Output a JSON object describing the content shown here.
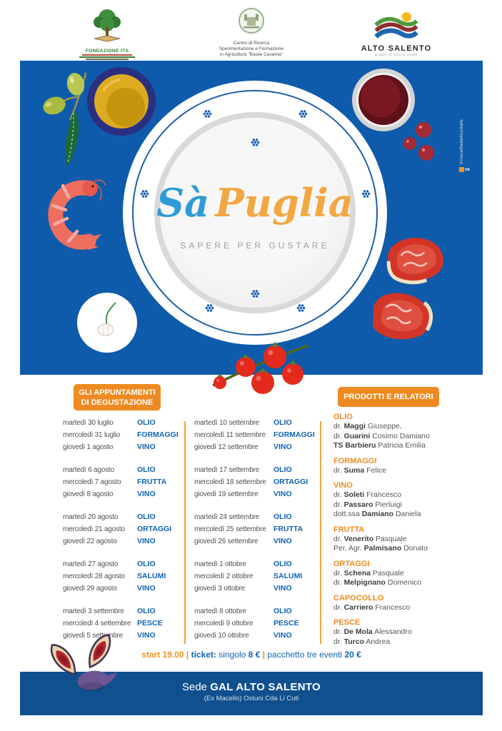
{
  "colors": {
    "background_blue": "#0e5bab",
    "footer_blue": "#11508f",
    "accent_orange": "#ee8a21",
    "category_blue": "#0e64b4",
    "script_blue": "#2d9bd5",
    "script_orange": "#f2a742"
  },
  "header": {
    "logo_fondazione": {
      "title": "FONDAZIONE ITS"
    },
    "logo_centro": {
      "lines": [
        "Centro di Ricerca",
        "Sperimentazione e Formazione",
        "in Agricoltura \"Basile Caramia\""
      ]
    },
    "logo_alto": {
      "title": "ALTO SALENTO",
      "subtitle": "gruppo di azione locale"
    }
  },
  "plate": {
    "title_sa": "Sà",
    "title_puglia": "Puglia",
    "subtitle": "SAPERE PER GUSTARE"
  },
  "side_credit": {
    "text": "ilriscattodellucitale",
    "mark": "rtk"
  },
  "schedule": {
    "header_line1": "GLI APPUNTAMENTI",
    "header_line2": "DI DEGUSTAZIONE",
    "columns": [
      {
        "groups": [
          [
            {
              "day": "martedì 30 luglio",
              "category": "OLIO"
            },
            {
              "day": "mercoledì 31 luglio",
              "category": "FORMAGGI"
            },
            {
              "day": "giovedì 1 agosto",
              "category": "VINO"
            }
          ],
          [
            {
              "day": "martedì 6 agosto",
              "category": "OLIO"
            },
            {
              "day": "mercoledì 7 agosto",
              "category": "FRUTTA"
            },
            {
              "day": "giovedì 8 agosto",
              "category": "VINO"
            }
          ],
          [
            {
              "day": "martedì 20 agosto",
              "category": "OLIO"
            },
            {
              "day": "mercoledì 21 agosto",
              "category": "ORTAGGI"
            },
            {
              "day": "giovedì 22 agosto",
              "category": "VINO"
            }
          ],
          [
            {
              "day": "martedì 27 agosto",
              "category": "OLIO"
            },
            {
              "day": "mercoledì 28 agosto",
              "category": "SALUMI"
            },
            {
              "day": "giovedì 29 agosto",
              "category": "VINO"
            }
          ],
          [
            {
              "day": "martedì 3 settembre",
              "category": "OLIO"
            },
            {
              "day": "mercoledì 4 settembre",
              "category": "PESCE"
            },
            {
              "day": "giovedì 5 settembre",
              "category": "VINO"
            }
          ]
        ]
      },
      {
        "groups": [
          [
            {
              "day": "martedì 10 settembre",
              "category": "OLIO"
            },
            {
              "day": "mercoledì 11 settembre",
              "category": "FORMAGGI"
            },
            {
              "day": "giovedì 12 settembre",
              "category": "VINO"
            }
          ],
          [
            {
              "day": "martedì 17 settembre",
              "category": "OLIO"
            },
            {
              "day": "mercoledì 18 settembre",
              "category": "ORTAGGI"
            },
            {
              "day": "giovedì 19 settembre",
              "category": "VINO"
            }
          ],
          [
            {
              "day": "martedì 24 settembre",
              "category": "OLIO"
            },
            {
              "day": "mercoledì 25 settembre",
              "category": "FRUTTA"
            },
            {
              "day": "giovedì 26 settembre",
              "category": "VINO"
            }
          ],
          [
            {
              "day": "martedì 1 ottobre",
              "category": "OLIO"
            },
            {
              "day": "mercoledì 2 ottobre",
              "category": "SALUMI"
            },
            {
              "day": "giovedì 3 ottobre",
              "category": "VINO"
            }
          ],
          [
            {
              "day": "martedì 8 ottobre",
              "category": "OLIO"
            },
            {
              "day": "mercoledì 9 ottobre",
              "category": "PESCE"
            },
            {
              "day": "giovedì 10 ottobre",
              "category": "VINO"
            }
          ]
        ]
      }
    ]
  },
  "relatori": {
    "header": "PRODOTTI E RELATORI",
    "sections": [
      {
        "title": "OLIO",
        "people": [
          {
            "pre": "dr.",
            "bold": "Maggi",
            "post": "Giuseppe,"
          },
          {
            "pre": "dr.",
            "bold": "Guarini",
            "post": "Cosimo Damiano"
          },
          {
            "pre": "",
            "bold": "TS Barbieru",
            "post": "Patricia Emilia"
          }
        ]
      },
      {
        "title": "FORMAGGI",
        "people": [
          {
            "pre": "dr.",
            "bold": "Suma",
            "post": "Felice"
          }
        ]
      },
      {
        "title": "VINO",
        "people": [
          {
            "pre": "dr.",
            "bold": "Soleti",
            "post": "Francesco"
          },
          {
            "pre": "dr.",
            "bold": "Passaro",
            "post": "Pierluigi"
          },
          {
            "pre": "dott.ssa",
            "bold": "Damiano",
            "post": "Daniela"
          }
        ]
      },
      {
        "title": "FRUTTA",
        "people": [
          {
            "pre": "dr.",
            "bold": "Venerito",
            "post": "Pasquale"
          },
          {
            "pre": "Per. Agr.",
            "bold": "Palmisano",
            "post": "Donato"
          }
        ]
      },
      {
        "title": "ORTAGGI",
        "people": [
          {
            "pre": "dr.",
            "bold": "Schena",
            "post": "Pasquale"
          },
          {
            "pre": "dr.",
            "bold": "Melpignano",
            "post": "Domenico"
          }
        ]
      },
      {
        "title": "CAPOCOLLO",
        "people": [
          {
            "pre": "dr.",
            "bold": "Carriero",
            "post": "Francesco"
          }
        ]
      },
      {
        "title": "PESCE",
        "people": [
          {
            "pre": "dr.",
            "bold": "De Mola",
            "post": "Alessandro"
          },
          {
            "pre": "dr.",
            "bold": "Turco",
            "post": "Andrea"
          }
        ]
      }
    ]
  },
  "ticket": {
    "parts": [
      {
        "text": "start 19.00",
        "style": "orange-bold"
      },
      {
        "text": " | ",
        "style": "orange-bold"
      },
      {
        "text": "ticket:",
        "style": "blue-bold"
      },
      {
        "text": " singolo ",
        "style": "blue"
      },
      {
        "text": "8 €",
        "style": "blue-bold"
      },
      {
        "text": " | ",
        "style": "orange-bold"
      },
      {
        "text": "pacchetto tre eventi ",
        "style": "blue"
      },
      {
        "text": "20 €",
        "style": "blue-bold"
      }
    ]
  },
  "footer": {
    "sede_prefix": "Sede",
    "sede_name": "GAL ALTO SALENTO",
    "address": "(Ex Macello) Ostuni Cda Li Cuti"
  }
}
